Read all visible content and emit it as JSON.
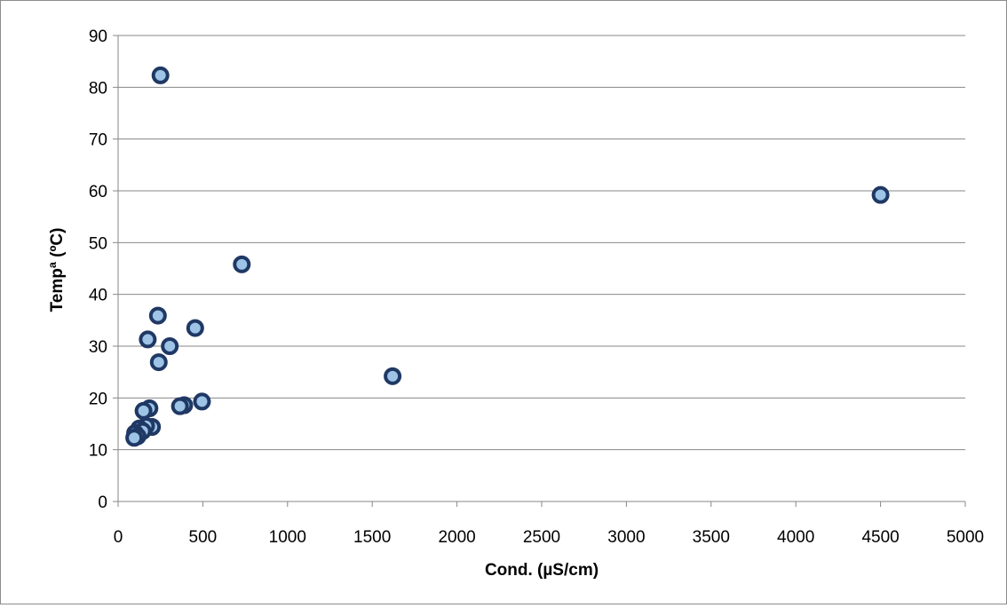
{
  "chart_data": {
    "type": "scatter",
    "title": "",
    "xlabel": "Cond. (µS/cm)",
    "ylabel": "Tempª (ºC)",
    "xlim": [
      0,
      5000
    ],
    "ylim": [
      0,
      90
    ],
    "xticks": [
      0,
      500,
      1000,
      1500,
      2000,
      2500,
      3000,
      3500,
      4000,
      4500,
      5000
    ],
    "yticks": [
      0,
      10,
      20,
      30,
      40,
      50,
      60,
      70,
      80,
      90
    ],
    "grid": "horizontal major gridlines",
    "legend": "none",
    "colors": {
      "marker_fill": "#9dc3e6",
      "marker_edge": "#1f3864",
      "gridline": "#878787",
      "axis": "#878787",
      "text": "#000000"
    },
    "points": [
      {
        "x": 250,
        "y": 82.3
      },
      {
        "x": 4500,
        "y": 59.2
      },
      {
        "x": 730,
        "y": 45.8
      },
      {
        "x": 235,
        "y": 35.9
      },
      {
        "x": 455,
        "y": 33.5
      },
      {
        "x": 175,
        "y": 31.3
      },
      {
        "x": 305,
        "y": 30.0
      },
      {
        "x": 240,
        "y": 26.9
      },
      {
        "x": 1620,
        "y": 24.2
      },
      {
        "x": 495,
        "y": 19.3
      },
      {
        "x": 390,
        "y": 18.6
      },
      {
        "x": 365,
        "y": 18.4
      },
      {
        "x": 185,
        "y": 18.0
      },
      {
        "x": 150,
        "y": 17.5
      },
      {
        "x": 200,
        "y": 14.4
      },
      {
        "x": 165,
        "y": 14.6
      },
      {
        "x": 125,
        "y": 14.1
      },
      {
        "x": 145,
        "y": 13.6
      },
      {
        "x": 100,
        "y": 13.2
      },
      {
        "x": 115,
        "y": 12.6
      },
      {
        "x": 95,
        "y": 12.3
      }
    ]
  }
}
